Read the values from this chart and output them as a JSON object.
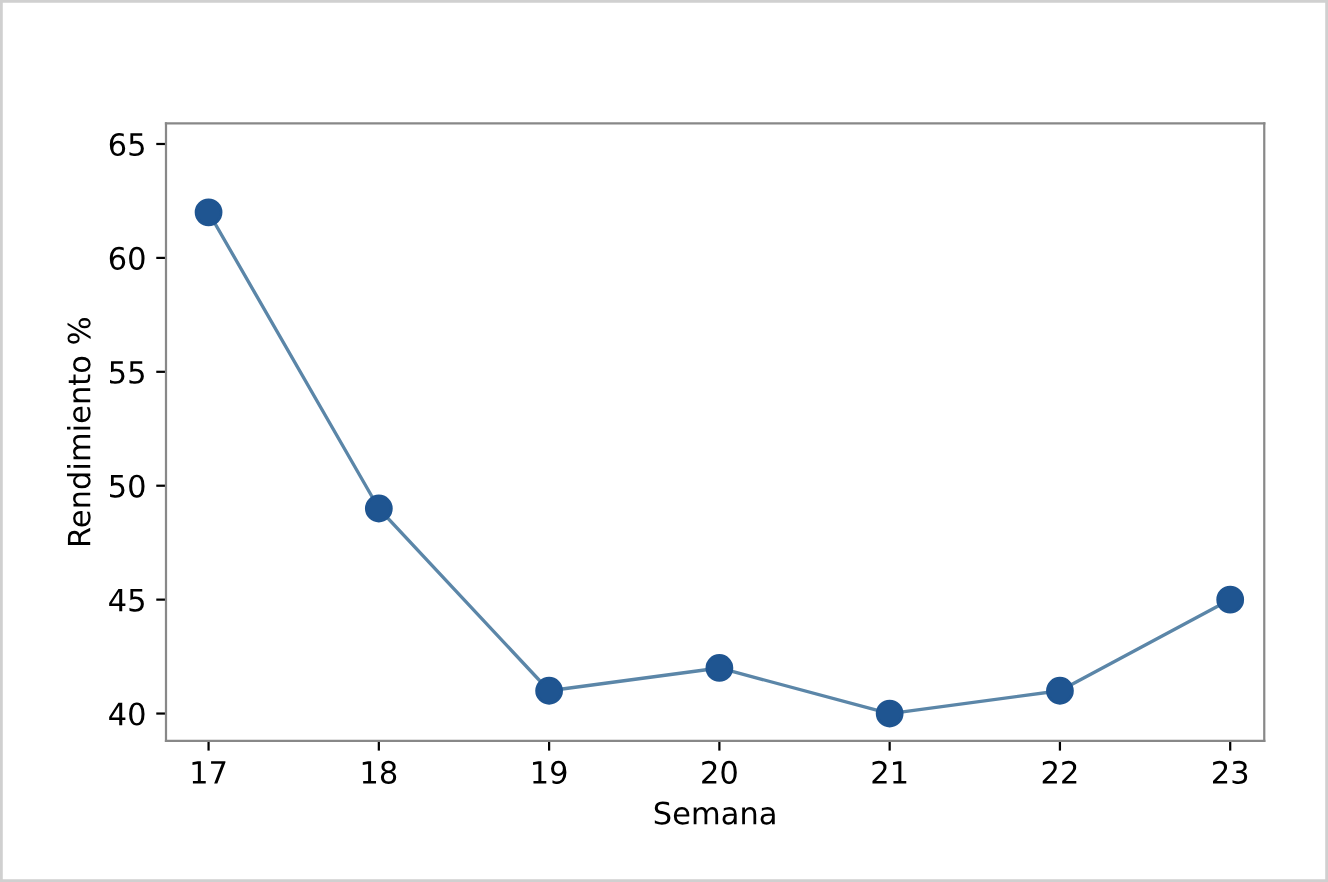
{
  "chart_data": {
    "type": "line",
    "xlabel": "Semana",
    "ylabel": "Rendimiento %",
    "x": [
      17,
      18,
      19,
      20,
      21,
      22,
      23
    ],
    "series": [
      {
        "color": "#1f5591",
        "values": [
          62,
          49,
          41,
          42,
          40,
          41,
          45
        ]
      }
    ],
    "xlim": [
      16.75,
      23.2
    ],
    "xticks": [
      17,
      18,
      19,
      20,
      21,
      22,
      23
    ],
    "ylim": [
      38.8,
      65.9
    ],
    "yticks": [
      40,
      45,
      50,
      55,
      60,
      65
    ],
    "grid": false,
    "marker": "circle",
    "line_style": "solid"
  }
}
